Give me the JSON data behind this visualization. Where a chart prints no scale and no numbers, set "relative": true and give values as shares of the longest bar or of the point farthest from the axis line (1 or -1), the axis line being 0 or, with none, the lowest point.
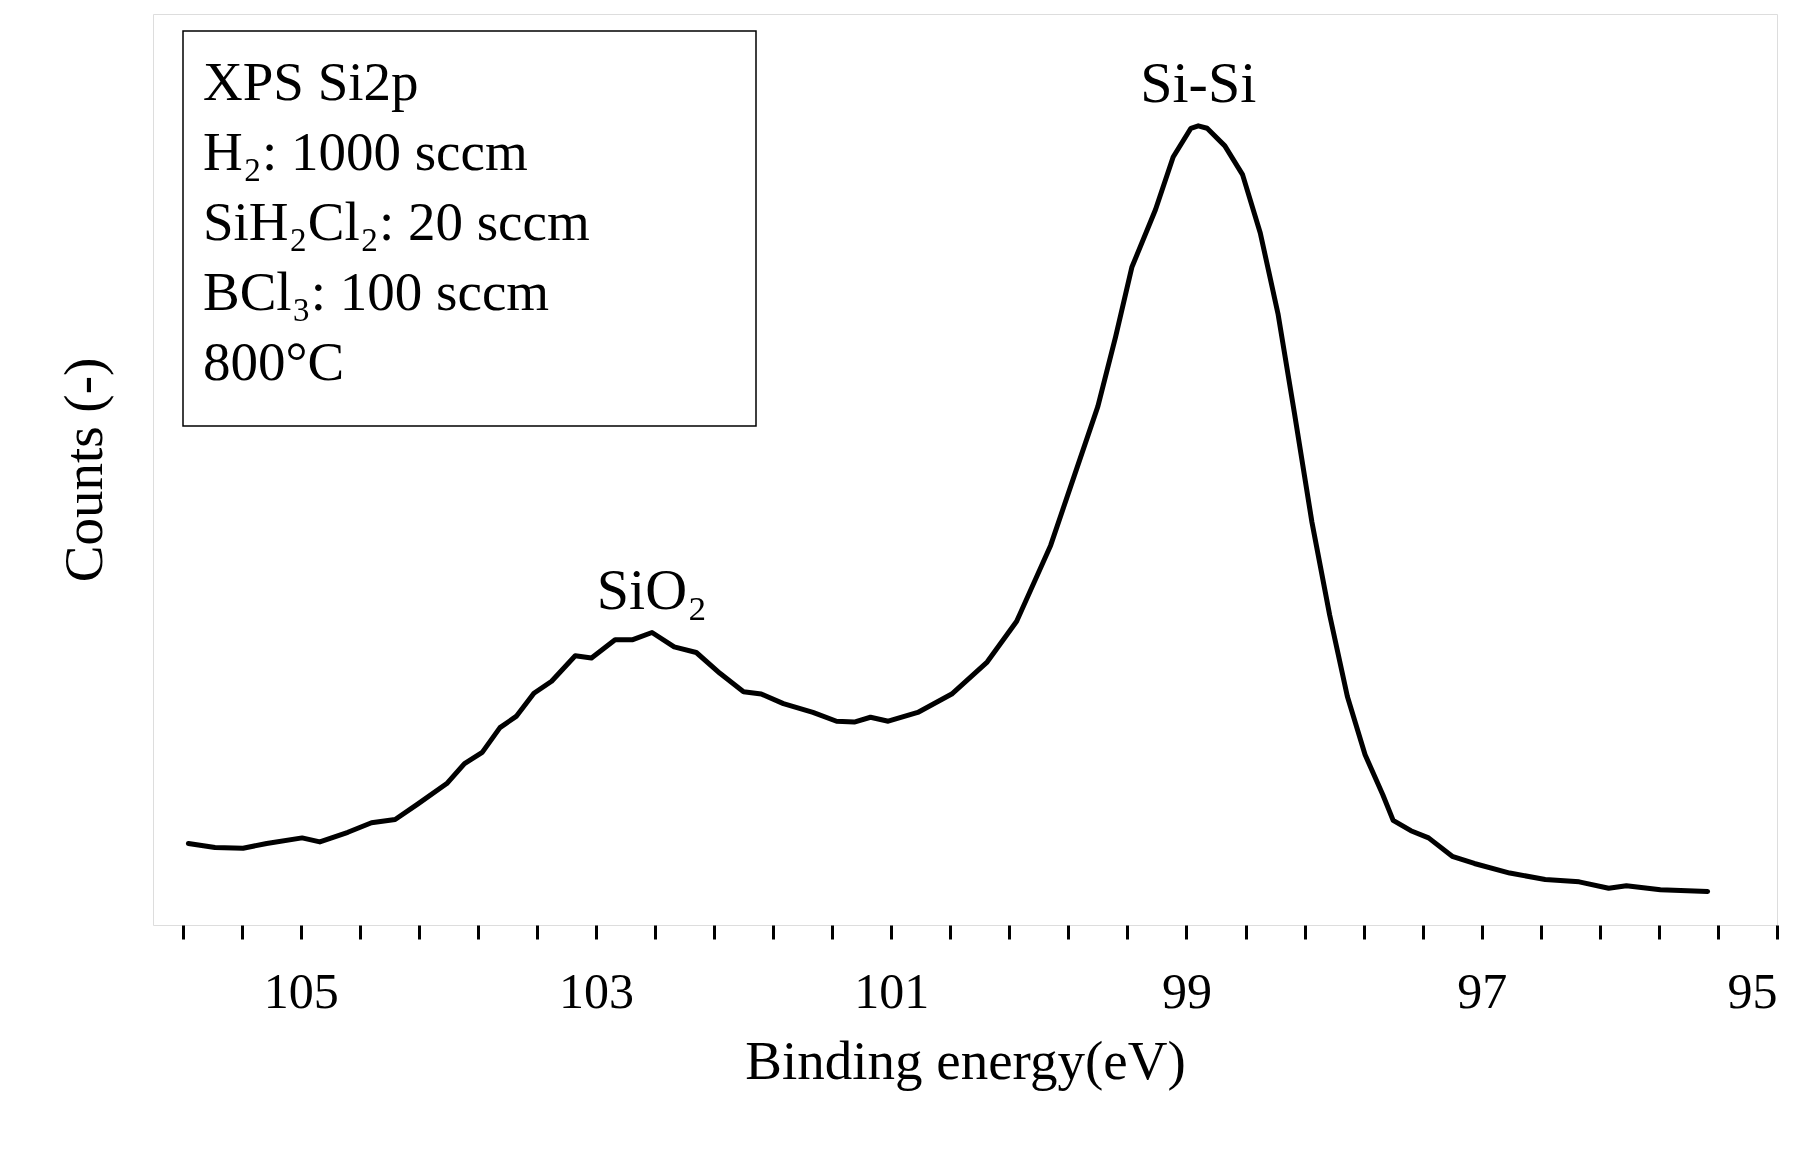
{
  "chart_data": {
    "type": "line",
    "relative": true,
    "xlabel": "Binding energy(eV)",
    "ylabel": "Counts (-)",
    "xlim": [
      106,
      95
    ],
    "xticks": [
      {
        "value": 105.8,
        "label": null
      },
      {
        "value": 105.4,
        "label": null
      },
      105,
      {
        "value": 104.6,
        "label": null
      },
      {
        "value": 104.2,
        "label": null
      },
      {
        "value": 103.8,
        "label": null
      },
      {
        "value": 103.4,
        "label": null
      },
      103,
      {
        "value": 102.6,
        "label": null
      },
      {
        "value": 102.2,
        "label": null
      },
      {
        "value": 101.8,
        "label": null
      },
      {
        "value": 101.4,
        "label": null
      },
      101,
      {
        "value": 100.6,
        "label": null
      },
      {
        "value": 100.2,
        "label": null
      },
      {
        "value": 99.8,
        "label": null
      },
      {
        "value": 99.4,
        "label": null
      },
      99,
      {
        "value": 98.6,
        "label": null
      },
      {
        "value": 98.2,
        "label": null
      },
      {
        "value": 97.8,
        "label": null
      },
      {
        "value": 97.4,
        "label": null
      },
      97,
      {
        "value": 96.6,
        "label": null
      },
      {
        "value": 96.2,
        "label": null
      },
      {
        "value": 95.8,
        "label": null
      },
      {
        "value": 95.4,
        "label": null
      },
      95
    ],
    "grid": false,
    "line_style": "solid",
    "marker": "none",
    "series": [
      {
        "color": "#000000",
        "x": [
          105.76,
          105.58,
          105.39,
          105.23,
          104.99,
          104.87,
          104.68,
          104.52,
          104.36,
          104.21,
          104.01,
          103.89,
          103.77,
          103.65,
          103.54,
          103.42,
          103.3,
          103.14,
          103.03,
          102.87,
          102.75,
          102.62,
          102.47,
          102.32,
          102.16,
          102.0,
          101.88,
          101.73,
          101.53,
          101.37,
          101.25,
          101.14,
          101.02,
          100.82,
          100.59,
          100.35,
          100.15,
          99.92,
          99.76,
          99.6,
          99.48,
          99.37,
          99.21,
          99.09,
          98.97,
          98.92,
          98.86,
          98.74,
          98.62,
          98.5,
          98.38,
          98.27,
          98.15,
          98.03,
          97.91,
          97.79,
          97.67,
          97.6,
          97.48,
          97.36,
          97.2,
          97.05,
          96.81,
          96.57,
          96.34,
          96.14,
          96.02,
          95.79,
          95.47
        ],
        "values": [
          0.102,
          0.097,
          0.096,
          0.102,
          0.109,
          0.104,
          0.116,
          0.128,
          0.132,
          0.151,
          0.177,
          0.202,
          0.216,
          0.247,
          0.261,
          0.29,
          0.305,
          0.337,
          0.334,
          0.357,
          0.357,
          0.366,
          0.348,
          0.341,
          0.315,
          0.292,
          0.289,
          0.277,
          0.266,
          0.255,
          0.254,
          0.26,
          0.255,
          0.266,
          0.289,
          0.329,
          0.38,
          0.475,
          0.562,
          0.649,
          0.736,
          0.823,
          0.895,
          0.961,
          0.997,
          1.0,
          0.997,
          0.975,
          0.939,
          0.866,
          0.765,
          0.642,
          0.504,
          0.388,
          0.286,
          0.213,
          0.163,
          0.131,
          0.118,
          0.109,
          0.086,
          0.077,
          0.065,
          0.057,
          0.054,
          0.046,
          0.049,
          0.044,
          0.042
        ]
      }
    ],
    "annotations": [
      "XPS Si2p",
      "H₂: 1000 sccm",
      "SiH₂Cl₂: 20 sccm",
      "BCl₃: 100 sccm",
      "800°C",
      {
        "text": "Si-Si",
        "x": 98.92,
        "y": 1.0
      },
      {
        "text": "SiO₂",
        "x": 102.62,
        "y": 0.366
      }
    ]
  }
}
